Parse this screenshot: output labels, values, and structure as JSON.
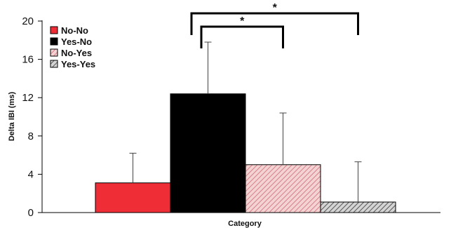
{
  "chart_data": {
    "type": "bar",
    "title": "",
    "xlabel": "Category",
    "ylabel": "Delta IBI (ms)",
    "ylim": [
      0,
      20
    ],
    "yticks": [
      "0",
      "4",
      "8",
      "12",
      "16",
      "20"
    ],
    "grid": false,
    "legend_position": "top-left",
    "series": [
      {
        "name": "No-No",
        "value": 3.1,
        "error": 3.1,
        "color": "#ee2d36",
        "pattern": "solid"
      },
      {
        "name": "Yes-No",
        "value": 12.4,
        "error": 5.4,
        "color": "#000000",
        "pattern": "solid"
      },
      {
        "name": "No-Yes",
        "value": 5.0,
        "error": 5.4,
        "color": "#e8a2a6",
        "pattern": "hatch"
      },
      {
        "name": "Yes-Yes",
        "value": 1.1,
        "error": 4.2,
        "color": "#8a8a8a",
        "pattern": "hatch"
      }
    ],
    "significance": [
      {
        "from": "Yes-No",
        "to": "No-Yes",
        "label": "*"
      },
      {
        "from": "Yes-No",
        "to": "Yes-Yes",
        "label": "*"
      }
    ]
  }
}
